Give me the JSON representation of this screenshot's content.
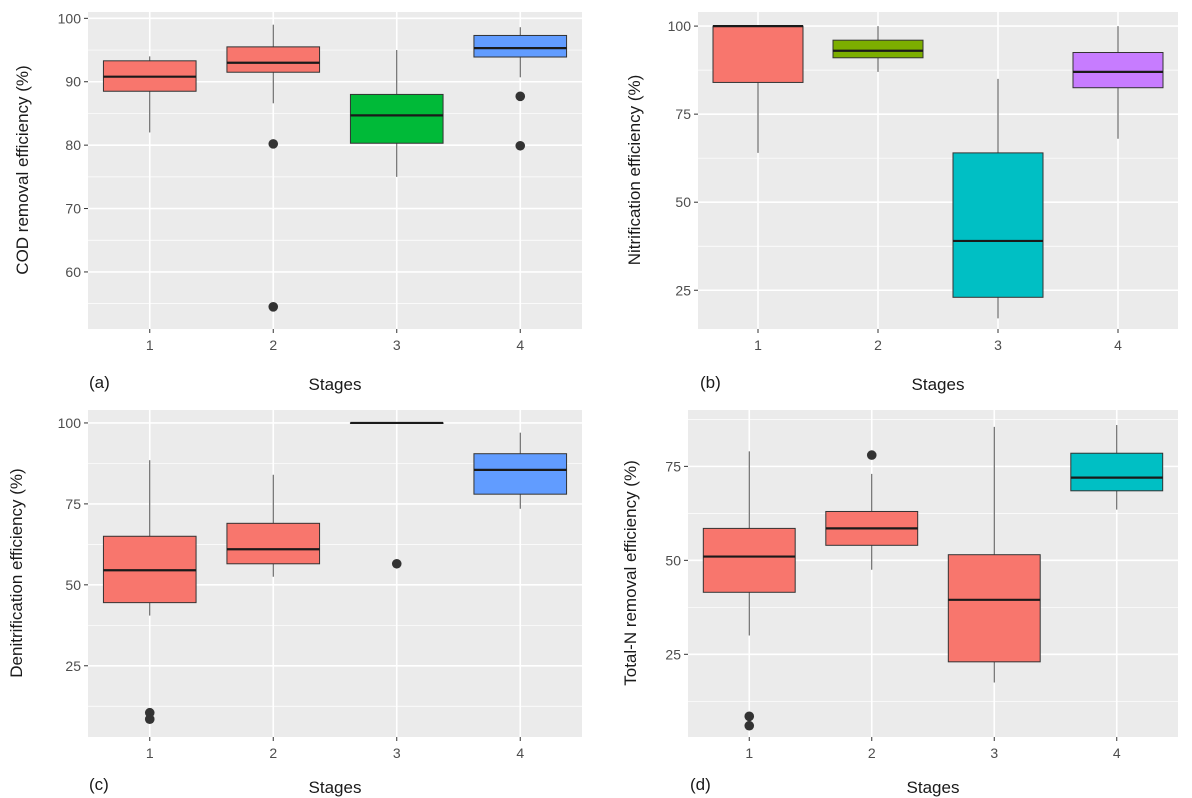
{
  "chart_data": [
    {
      "type": "boxplot",
      "panel_label": "(a)",
      "xlabel": "Stages",
      "ylabel": "COD removal efficiency (%)",
      "categories": [
        "1",
        "2",
        "3",
        "4"
      ],
      "ylim": [
        51,
        101
      ],
      "yticks": [
        60,
        70,
        80,
        90,
        100
      ],
      "grid": true,
      "legend": "none",
      "boxes": [
        {
          "category": "1",
          "lower_whisker": 82,
          "q1": 88.5,
          "median": 90.8,
          "q3": 93.3,
          "upper_whisker": 94,
          "outliers": [],
          "color": "#F8766D"
        },
        {
          "category": "2",
          "lower_whisker": 86.6,
          "q1": 91.5,
          "median": 93,
          "q3": 95.5,
          "upper_whisker": 99,
          "outliers": [
            80.2,
            54.5
          ],
          "color": "#F8766D"
        },
        {
          "category": "3",
          "lower_whisker": 75,
          "q1": 80.3,
          "median": 84.7,
          "q3": 88,
          "upper_whisker": 95,
          "outliers": [],
          "color": "#00BA38"
        },
        {
          "category": "4",
          "lower_whisker": 90.7,
          "q1": 93.9,
          "median": 95.3,
          "q3": 97.3,
          "upper_whisker": 98.6,
          "outliers": [
            87.7,
            79.9
          ],
          "color": "#619CFF"
        }
      ]
    },
    {
      "type": "boxplot",
      "panel_label": "(b)",
      "xlabel": "Stages",
      "ylabel": "Nitrification efficiency (%)",
      "categories": [
        "1",
        "2",
        "3",
        "4"
      ],
      "ylim": [
        14,
        104
      ],
      "yticks": [
        25,
        50,
        75,
        100
      ],
      "grid": true,
      "legend": "none",
      "boxes": [
        {
          "category": "1",
          "lower_whisker": 64,
          "q1": 84,
          "median": 100,
          "q3": 100,
          "upper_whisker": 100,
          "outliers": [],
          "color": "#F8766D"
        },
        {
          "category": "2",
          "lower_whisker": 87,
          "q1": 91,
          "median": 93,
          "q3": 96,
          "upper_whisker": 100,
          "outliers": [],
          "color": "#7CAE00"
        },
        {
          "category": "3",
          "lower_whisker": 17,
          "q1": 23,
          "median": 39,
          "q3": 64,
          "upper_whisker": 85,
          "outliers": [],
          "color": "#00BFC4"
        },
        {
          "category": "4",
          "lower_whisker": 68,
          "q1": 82.5,
          "median": 87,
          "q3": 92.5,
          "upper_whisker": 100,
          "outliers": [],
          "color": "#C77CFF"
        }
      ]
    },
    {
      "type": "boxplot",
      "panel_label": "(c)",
      "xlabel": "Stages",
      "ylabel": "Denitrification efficiency (%)",
      "categories": [
        "1",
        "2",
        "3",
        "4"
      ],
      "ylim": [
        3,
        104
      ],
      "yticks": [
        25,
        50,
        75,
        100
      ],
      "grid": true,
      "legend": "none",
      "boxes": [
        {
          "category": "1",
          "lower_whisker": 40.5,
          "q1": 44.5,
          "median": 54.5,
          "q3": 65,
          "upper_whisker": 88.5,
          "outliers": [
            10.5,
            8.5
          ],
          "color": "#F8766D"
        },
        {
          "category": "2",
          "lower_whisker": 52.5,
          "q1": 56.5,
          "median": 61,
          "q3": 69,
          "upper_whisker": 84,
          "outliers": [],
          "color": "#F8766D"
        },
        {
          "category": "3",
          "lower_whisker": 100,
          "q1": 100,
          "median": 100,
          "q3": 100,
          "upper_whisker": 100,
          "outliers": [
            56.5
          ],
          "color": "#00BA38"
        },
        {
          "category": "4",
          "lower_whisker": 73.5,
          "q1": 78,
          "median": 85.5,
          "q3": 90.5,
          "upper_whisker": 97,
          "outliers": [],
          "color": "#619CFF"
        }
      ]
    },
    {
      "type": "boxplot",
      "panel_label": "(d)",
      "xlabel": "Stages",
      "ylabel": "Total-N removal efficiency (%)",
      "categories": [
        "1",
        "2",
        "3",
        "4"
      ],
      "ylim": [
        3,
        90
      ],
      "yticks": [
        25,
        50,
        75
      ],
      "grid": true,
      "legend": "none",
      "boxes": [
        {
          "category": "1",
          "lower_whisker": 30,
          "q1": 41.5,
          "median": 51,
          "q3": 58.5,
          "upper_whisker": 79,
          "outliers": [
            8.5,
            6
          ],
          "color": "#F8766D"
        },
        {
          "category": "2",
          "lower_whisker": 47.5,
          "q1": 54,
          "median": 58.5,
          "q3": 63,
          "upper_whisker": 73,
          "outliers": [
            78
          ],
          "color": "#F8766D"
        },
        {
          "category": "3",
          "lower_whisker": 17.5,
          "q1": 23,
          "median": 39.5,
          "q3": 51.5,
          "upper_whisker": 85.5,
          "outliers": [],
          "color": "#F8766D"
        },
        {
          "category": "4",
          "lower_whisker": 63.5,
          "q1": 68.5,
          "median": 72,
          "q3": 78.5,
          "upper_whisker": 86,
          "outliers": [],
          "color": "#00BFC4"
        }
      ]
    }
  ],
  "colors": {
    "panel_bg": "#EBEBEB",
    "grid": "#FFFFFF",
    "box_stroke": "#333333",
    "whisker": "#4D4D4D",
    "outlier": "#333333"
  }
}
